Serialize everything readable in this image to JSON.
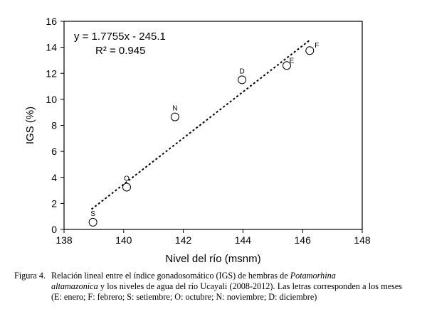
{
  "chart_data": {
    "type": "scatter",
    "xlabel": "Nivel del río (msnm)",
    "ylabel": "IGS (%)",
    "xlim": [
      138,
      148
    ],
    "ylim": [
      0,
      16
    ],
    "xticks": [
      138,
      140,
      142,
      144,
      146,
      148
    ],
    "yticks": [
      0,
      2,
      4,
      6,
      8,
      10,
      12,
      14,
      16
    ],
    "grid": false,
    "points": [
      {
        "label": "S",
        "x": 138.97,
        "y": 0.55
      },
      {
        "label": "O",
        "x": 140.1,
        "y": 3.25
      },
      {
        "label": "N",
        "x": 141.72,
        "y": 8.65
      },
      {
        "label": "D",
        "x": 143.97,
        "y": 11.5
      },
      {
        "label": "E",
        "x": 145.47,
        "y": 12.6
      },
      {
        "label": "F",
        "x": 146.24,
        "y": 13.75
      }
    ],
    "trendline": {
      "style": "dotted",
      "slope": 1.7755,
      "intercept": -245.1,
      "x_range": [
        138.92,
        146.24
      ]
    },
    "annotations": {
      "equation": "y = 1.7755x - 245.1",
      "r2": "R² = 0.945"
    }
  },
  "caption": {
    "label": "Figura 4.",
    "text_before_italic": "Relación lineal entre el índice gonadosomático (IGS) de hembras de ",
    "italic_1": "Potamorhina",
    "italic_2": "altamazonica",
    "text_after_italic": " y los niveles de agua del río Ucayali (2008-2012). Las letras corresponden a los meses (E: enero; F: febrero; S: setiembre; O: octubre; N: noviembre; D: diciembre)"
  }
}
